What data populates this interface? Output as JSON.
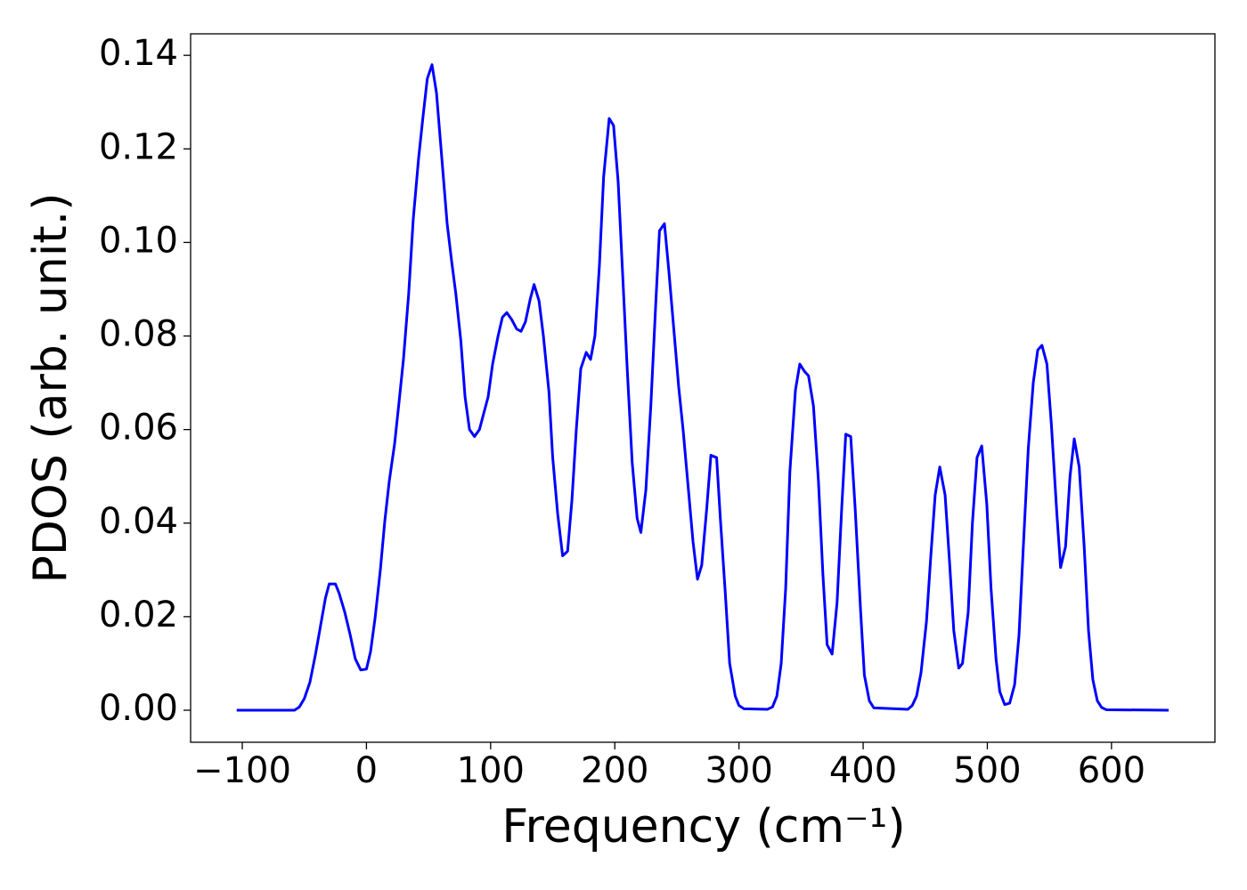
{
  "chart_data": {
    "type": "line",
    "xlabel": "Frequency (cm⁻¹)",
    "ylabel": "PDOS (arb. unit.)",
    "color": "#0000ff",
    "xlim": [
      -141.6,
      683.3
    ],
    "ylim": [
      -0.00685,
      0.1446
    ],
    "xticks": [
      {
        "value": -100,
        "label": "−100"
      },
      0,
      100,
      200,
      300,
      400,
      500,
      600
    ],
    "yticks": [
      {
        "value": 0,
        "label": "0.00"
      },
      {
        "value": 0.02,
        "label": "0.02"
      },
      {
        "value": 0.04,
        "label": "0.04"
      },
      {
        "value": 0.06,
        "label": "0.06"
      },
      {
        "value": 0.08,
        "label": "0.08"
      },
      {
        "value": 0.1,
        "label": "0.10"
      },
      {
        "value": 0.12,
        "label": "0.12"
      },
      {
        "value": 0.14,
        "label": "0.14"
      }
    ],
    "x": [
      -104.5,
      -58,
      -54,
      -50,
      -45.5,
      -41,
      -37,
      -33,
      -30,
      -25,
      -22,
      -17.5,
      -13,
      -9,
      -4.6,
      0,
      3.3,
      6.9,
      11.2,
      14.8,
      18.4,
      22.7,
      26.3,
      29.8,
      34,
      37.7,
      42,
      45.6,
      49,
      52.8,
      56.4,
      60.7,
      65,
      68.6,
      72,
      76,
      79.4,
      83,
      87,
      91,
      94,
      98,
      101.6,
      106,
      109.5,
      113,
      117,
      121,
      124.5,
      128,
      132,
      135,
      139,
      142.5,
      147,
      150,
      154,
      158,
      162,
      165.5,
      169,
      172.6,
      177,
      180.5,
      184,
      187.6,
      191,
      195.5,
      199,
      202.7,
      206,
      210,
      214,
      218,
      221,
      225,
      229,
      233,
      236,
      240,
      243.5,
      248,
      251.5,
      255,
      259,
      263,
      266.6,
      270,
      274,
      277.4,
      282,
      285,
      289,
      292.5,
      297,
      300,
      304,
      323,
      327,
      330.5,
      334,
      337.6,
      341,
      345.5,
      349,
      352.6,
      356,
      360,
      364,
      367.6,
      371,
      375,
      379,
      382.7,
      386,
      390,
      393.6,
      398,
      401,
      405,
      408.6,
      436,
      439.5,
      443,
      446.6,
      451,
      454.5,
      458,
      461.7,
      466,
      469.5,
      473,
      477,
      480,
      484.6,
      488,
      491.7,
      495.5,
      499.6,
      503,
      507,
      510,
      514,
      518,
      522,
      525.5,
      529,
      533,
      537,
      540.6,
      544,
      548,
      551.6,
      556,
      559,
      563,
      566.6,
      570,
      574,
      578,
      581.5,
      585,
      588.6,
      592,
      596,
      646
    ],
    "values": [
      0,
      0,
      0.0007,
      0.0025,
      0.006,
      0.012,
      0.018,
      0.024,
      0.027,
      0.027,
      0.025,
      0.021,
      0.016,
      0.011,
      0.0086,
      0.0088,
      0.0125,
      0.0196,
      0.03,
      0.0405,
      0.049,
      0.057,
      0.066,
      0.075,
      0.089,
      0.105,
      0.118,
      0.127,
      0.135,
      0.138,
      0.132,
      0.118,
      0.104,
      0.096,
      0.089,
      0.079,
      0.067,
      0.06,
      0.0585,
      0.06,
      0.063,
      0.067,
      0.074,
      0.08,
      0.084,
      0.085,
      0.0835,
      0.0815,
      0.081,
      0.083,
      0.088,
      0.091,
      0.0875,
      0.08,
      0.068,
      0.054,
      0.042,
      0.033,
      0.034,
      0.045,
      0.06,
      0.073,
      0.0765,
      0.075,
      0.08,
      0.095,
      0.114,
      0.1265,
      0.125,
      0.113,
      0.095,
      0.073,
      0.053,
      0.041,
      0.038,
      0.047,
      0.065,
      0.087,
      0.1025,
      0.104,
      0.094,
      0.08,
      0.069,
      0.06,
      0.048,
      0.036,
      0.028,
      0.031,
      0.043,
      0.0545,
      0.054,
      0.041,
      0.025,
      0.01,
      0.003,
      0.001,
      0.0003,
      0.0002,
      0.0007,
      0.003,
      0.01,
      0.026,
      0.051,
      0.0685,
      0.074,
      0.0725,
      0.0715,
      0.065,
      0.049,
      0.029,
      0.014,
      0.012,
      0.023,
      0.043,
      0.059,
      0.0585,
      0.043,
      0.021,
      0.0075,
      0.002,
      0.0005,
      0.0002,
      0.001,
      0.003,
      0.008,
      0.019,
      0.033,
      0.046,
      0.052,
      0.046,
      0.032,
      0.017,
      0.009,
      0.01,
      0.021,
      0.04,
      0.054,
      0.0565,
      0.044,
      0.026,
      0.011,
      0.004,
      0.0012,
      0.0015,
      0.0055,
      0.016,
      0.035,
      0.056,
      0.07,
      0.077,
      0.078,
      0.074,
      0.061,
      0.042,
      0.0305,
      0.035,
      0.05,
      0.058,
      0.052,
      0.035,
      0.017,
      0.0065,
      0.002,
      0.0006,
      0.0001,
      0
    ]
  }
}
